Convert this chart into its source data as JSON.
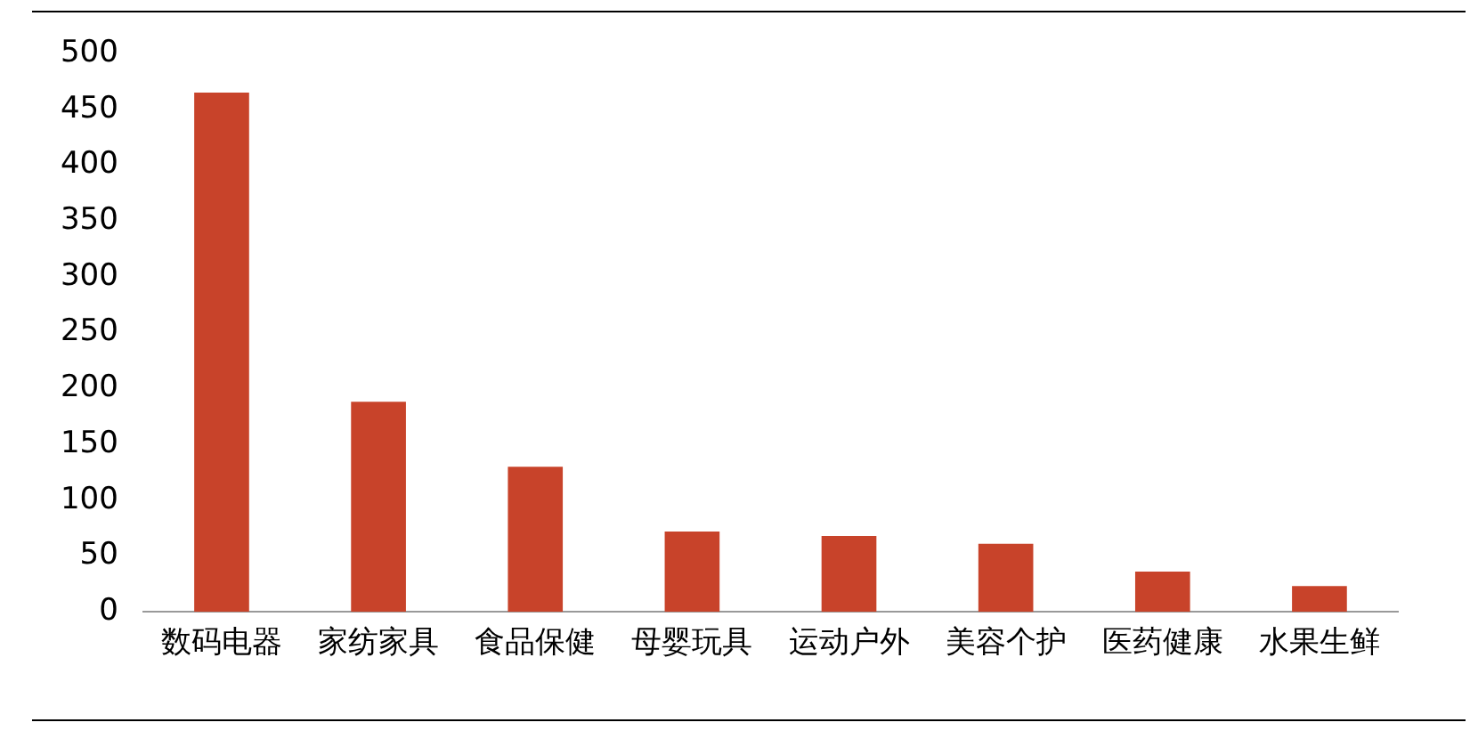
{
  "chart_data": {
    "type": "bar",
    "categories": [
      "数码电器",
      "家纺家具",
      "食品保健",
      "母婴玩具",
      "运动户外",
      "美容个护",
      "医药健康",
      "水果生鲜"
    ],
    "values": [
      465,
      188,
      130,
      72,
      68,
      61,
      36,
      23
    ],
    "color": "#c8432a",
    "ylim": [
      0,
      500
    ],
    "yticks": [
      0,
      50,
      100,
      150,
      200,
      250,
      300,
      350,
      400,
      450,
      500
    ],
    "grid": false,
    "legend": false
  }
}
